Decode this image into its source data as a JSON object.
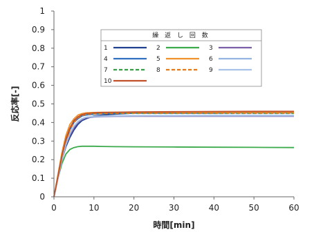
{
  "chart_data": {
    "type": "line",
    "xlabel": "時間[min]",
    "ylabel": "反応率[-]",
    "xlim": [
      0,
      60
    ],
    "ylim": [
      0,
      1
    ],
    "xticks": [
      0,
      10,
      20,
      30,
      40,
      50,
      60
    ],
    "yticks": [
      0,
      0.1,
      0.2,
      0.3,
      0.4,
      0.5,
      0.6,
      0.7,
      0.8,
      0.9,
      1
    ],
    "ytick_labels": [
      "0",
      "0.1",
      "0.2",
      "0.3",
      "0.4",
      "0.5",
      "0.6",
      "0.7",
      "0.8",
      "0.9",
      "1"
    ],
    "grid": false,
    "legend_title": "繰 返 し 回 数",
    "legend_position": "top-center",
    "series": [
      {
        "name": "1",
        "color": "#1f3f8f",
        "dash": "solid",
        "x": [
          0,
          1,
          2,
          3,
          4,
          5,
          6,
          7,
          8,
          10,
          12,
          15,
          20,
          30,
          40,
          50,
          60
        ],
        "y": [
          0,
          0.1,
          0.2,
          0.27,
          0.32,
          0.36,
          0.39,
          0.41,
          0.42,
          0.435,
          0.44,
          0.445,
          0.45,
          0.45,
          0.45,
          0.455,
          0.455
        ]
      },
      {
        "name": "2",
        "color": "#3aaa4a",
        "dash": "solid",
        "x": [
          0,
          1,
          2,
          3,
          4,
          5,
          6,
          7,
          8,
          10,
          12,
          15,
          20,
          30,
          40,
          50,
          60
        ],
        "y": [
          0,
          0.1,
          0.18,
          0.23,
          0.255,
          0.265,
          0.27,
          0.272,
          0.272,
          0.272,
          0.271,
          0.27,
          0.269,
          0.268,
          0.267,
          0.266,
          0.265
        ]
      },
      {
        "name": "3",
        "color": "#7a5ea8",
        "dash": "solid",
        "x": [
          0,
          1,
          2,
          3,
          4,
          5,
          6,
          7,
          8,
          10,
          12,
          15,
          20,
          30,
          40,
          50,
          60
        ],
        "y": [
          0,
          0.1,
          0.2,
          0.28,
          0.33,
          0.37,
          0.4,
          0.415,
          0.425,
          0.43,
          0.432,
          0.433,
          0.434,
          0.434,
          0.434,
          0.434,
          0.434
        ]
      },
      {
        "name": "4",
        "color": "#2f6fc0",
        "dash": "solid",
        "x": [
          0,
          1,
          2,
          3,
          4,
          5,
          6,
          7,
          8,
          10,
          12,
          15,
          20,
          30,
          40,
          50,
          60
        ],
        "y": [
          0,
          0.11,
          0.22,
          0.3,
          0.36,
          0.4,
          0.42,
          0.435,
          0.44,
          0.445,
          0.448,
          0.45,
          0.452,
          0.452,
          0.452,
          0.452,
          0.452
        ]
      },
      {
        "name": "5",
        "color": "#f0902a",
        "dash": "solid",
        "x": [
          0,
          1,
          2,
          3,
          4,
          5,
          6,
          7,
          8,
          10,
          12,
          15,
          20,
          30,
          40,
          50,
          60
        ],
        "y": [
          0,
          0.12,
          0.24,
          0.33,
          0.39,
          0.42,
          0.44,
          0.448,
          0.452,
          0.454,
          0.455,
          0.455,
          0.455,
          0.455,
          0.455,
          0.455,
          0.455
        ]
      },
      {
        "name": "6",
        "color": "#93b4e0",
        "dash": "solid",
        "x": [
          0,
          1,
          2,
          3,
          4,
          5,
          6,
          7,
          8,
          10,
          12,
          15,
          20,
          30,
          40,
          50,
          60
        ],
        "y": [
          0,
          0.1,
          0.21,
          0.29,
          0.34,
          0.38,
          0.405,
          0.42,
          0.428,
          0.432,
          0.434,
          0.435,
          0.436,
          0.437,
          0.438,
          0.438,
          0.438
        ]
      },
      {
        "name": "7",
        "color": "#3a9a4a",
        "dash": "dashed",
        "x": [
          0,
          1,
          2,
          3,
          4,
          5,
          6,
          7,
          8,
          10,
          12,
          15,
          20,
          30,
          40,
          50,
          60
        ],
        "y": [
          0,
          0.11,
          0.22,
          0.31,
          0.37,
          0.41,
          0.43,
          0.44,
          0.445,
          0.448,
          0.449,
          0.449,
          0.449,
          0.449,
          0.449,
          0.449,
          0.449
        ]
      },
      {
        "name": "8",
        "color": "#e07820",
        "dash": "dashed",
        "x": [
          0,
          1,
          2,
          3,
          4,
          5,
          6,
          7,
          8,
          10,
          12,
          15,
          20,
          30,
          40,
          50,
          60
        ],
        "y": [
          0,
          0.1,
          0.21,
          0.3,
          0.36,
          0.4,
          0.425,
          0.437,
          0.443,
          0.447,
          0.448,
          0.449,
          0.45,
          0.45,
          0.45,
          0.45,
          0.45
        ]
      },
      {
        "name": "9",
        "color": "#a7c2e8",
        "dash": "solid",
        "x": [
          0,
          1,
          2,
          3,
          4,
          5,
          6,
          7,
          8,
          10,
          12,
          15,
          20,
          30,
          40,
          50,
          60
        ],
        "y": [
          0,
          0.1,
          0.2,
          0.28,
          0.34,
          0.38,
          0.405,
          0.42,
          0.428,
          0.433,
          0.435,
          0.436,
          0.436,
          0.436,
          0.436,
          0.436,
          0.436
        ]
      },
      {
        "name": "10",
        "color": "#c0502a",
        "dash": "solid",
        "x": [
          0,
          1,
          2,
          3,
          4,
          5,
          6,
          7,
          8,
          10,
          12,
          15,
          20,
          30,
          40,
          50,
          60
        ],
        "y": [
          0,
          0.11,
          0.22,
          0.31,
          0.37,
          0.41,
          0.43,
          0.442,
          0.448,
          0.452,
          0.454,
          0.455,
          0.457,
          0.458,
          0.459,
          0.46,
          0.46
        ]
      }
    ]
  }
}
